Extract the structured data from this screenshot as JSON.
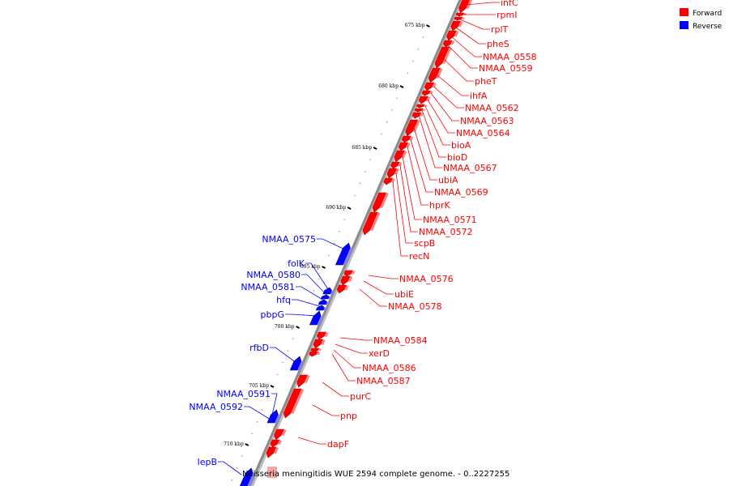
{
  "legend": {
    "forward_label": "Forward",
    "reverse_label": "Reverse",
    "forward_color": "#ff0000",
    "reverse_color": "#0000ff"
  },
  "caption": "Neisseria meningitidis WUE 2594 complete genome. - 0..2227255",
  "ticks": [
    "675 kbp",
    "680 kbp",
    "685 kbp",
    "690 kbp",
    "695 kbp",
    "700 kbp",
    "705 kbp",
    "710 kbp"
  ],
  "forward_genes": [
    "infC",
    "rpmI",
    "rplT",
    "pheS",
    "NMAA_0558",
    "NMAA_0559",
    "pheT",
    "ihfA",
    "NMAA_0562",
    "NMAA_0563",
    "NMAA_0564",
    "bioA",
    "bioD",
    "NMAA_0567",
    "ubiA",
    "NMAA_0569",
    "hprK",
    "NMAA_0571",
    "NMAA_0572",
    "scpB",
    "recN",
    "NMAA_0576",
    "ubiE",
    "NMAA_0578",
    "NMAA_0584",
    "xerD",
    "NMAA_0586",
    "NMAA_0587",
    "purC",
    "pnp",
    "dapF"
  ],
  "reverse_genes": [
    "NMAA_0575",
    "folK",
    "NMAA_0580",
    "NMAA_0581",
    "hfq",
    "pbpG",
    "rfbD",
    "NMAA_0591",
    "NMAA_0592",
    "lepB"
  ]
}
